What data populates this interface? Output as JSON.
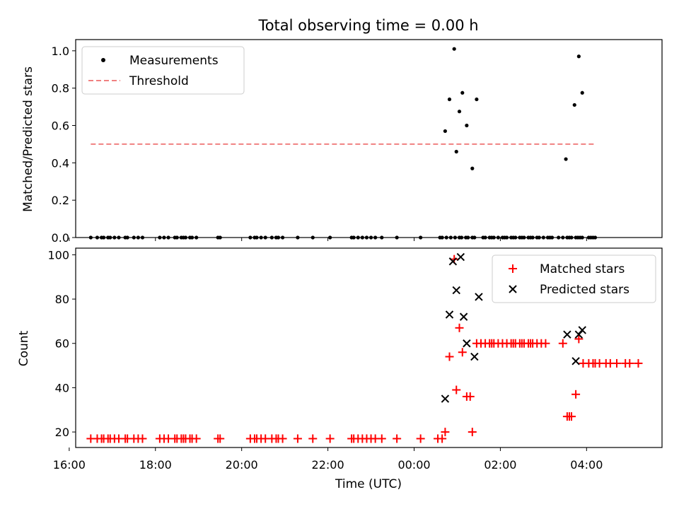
{
  "chart_data": [
    {
      "type": "scatter",
      "title": "Total observing time = 0.00 h",
      "ylabel": "Matched/Predicted stars",
      "xlabel": "",
      "xlim": [
        16.15,
        29.75
      ],
      "ylim": [
        0.0,
        1.06
      ],
      "yticks": [
        0.0,
        0.2,
        0.4,
        0.6,
        0.8,
        1.0
      ],
      "ytick_labels": [
        "0.0",
        "0.2",
        "0.4",
        "0.6",
        "0.8",
        "1.0"
      ],
      "xticks": [
        16,
        18,
        20,
        22,
        24,
        26,
        28
      ],
      "grid": false,
      "legend": {
        "placement": "top-left",
        "entries": [
          {
            "label": "Measurements",
            "marker": "dot",
            "color": "#000000"
          },
          {
            "label": "Threshold",
            "marker": "dashed-line",
            "color": "#f08080"
          }
        ]
      },
      "threshold": {
        "value": 0.5,
        "x_range": [
          16.5,
          28.2
        ]
      },
      "series": [
        {
          "name": "Measurements",
          "color": "#000000",
          "x": [
            16.5,
            16.65,
            16.75,
            16.8,
            16.9,
            16.95,
            17.05,
            17.15,
            17.3,
            17.35,
            17.5,
            17.6,
            17.7,
            18.1,
            18.2,
            18.3,
            18.45,
            18.5,
            18.6,
            18.65,
            18.7,
            18.8,
            18.85,
            18.95,
            19.45,
            19.5,
            20.2,
            20.3,
            20.35,
            20.45,
            20.55,
            20.7,
            20.8,
            20.85,
            20.95,
            21.3,
            21.65,
            22.05,
            22.55,
            22.6,
            22.7,
            22.8,
            22.9,
            23.0,
            23.1,
            23.25,
            23.6,
            24.15,
            24.6,
            24.65,
            24.75,
            24.85,
            24.95,
            25.05,
            25.1,
            25.2,
            25.25,
            25.35,
            25.4,
            25.6,
            25.65,
            25.75,
            25.8,
            25.85,
            25.95,
            26.05,
            26.1,
            26.15,
            26.25,
            26.3,
            26.35,
            26.45,
            26.5,
            26.55,
            26.65,
            26.7,
            26.75,
            26.85,
            26.9,
            27.0,
            27.1,
            27.15,
            27.2,
            27.35,
            27.45,
            27.55,
            27.6,
            27.65,
            27.75,
            27.8,
            27.85,
            27.9,
            28.05,
            28.1,
            28.15,
            28.2
          ],
          "y": [
            0,
            0,
            0,
            0,
            0,
            0,
            0,
            0,
            0,
            0,
            0,
            0,
            0,
            0,
            0,
            0,
            0,
            0,
            0,
            0,
            0,
            0,
            0,
            0,
            0,
            0,
            0,
            0,
            0,
            0,
            0,
            0,
            0,
            0,
            0,
            0,
            0,
            0,
            0,
            0,
            0,
            0,
            0,
            0,
            0,
            0,
            0,
            0,
            0,
            0,
            0,
            0,
            0,
            0,
            0,
            0,
            0,
            0,
            0,
            0,
            0,
            0,
            0,
            0,
            0,
            0,
            0,
            0,
            0,
            0,
            0,
            0,
            0,
            0,
            0,
            0,
            0,
            0,
            0,
            0,
            0,
            0,
            0,
            0,
            0,
            0,
            0,
            0,
            0,
            0,
            0,
            0,
            0,
            0,
            0,
            0
          ],
          "extra_points": {
            "x": [
              24.72,
              24.82,
              24.93,
              24.98,
              25.05,
              25.12,
              25.22,
              25.35,
              25.45,
              27.52,
              27.72,
              27.82,
              27.9
            ],
            "y": [
              0.57,
              0.74,
              1.01,
              0.46,
              0.675,
              0.775,
              0.6,
              0.37,
              0.74,
              0.42,
              0.71,
              0.97,
              0.775
            ]
          }
        }
      ]
    },
    {
      "type": "scatter",
      "title": "",
      "ylabel": "Count",
      "xlabel": "Time (UTC)",
      "xlim": [
        16.15,
        29.75
      ],
      "ylim": [
        13,
        103
      ],
      "yticks": [
        20,
        40,
        60,
        80,
        100
      ],
      "ytick_labels": [
        "20",
        "40",
        "60",
        "80",
        "100"
      ],
      "xticks": [
        16,
        18,
        20,
        22,
        24,
        26,
        28
      ],
      "xtick_labels": [
        "16:00",
        "18:00",
        "20:00",
        "22:00",
        "00:00",
        "02:00",
        "04:00"
      ],
      "grid": false,
      "legend": {
        "placement": "top-right",
        "entries": [
          {
            "label": "Matched stars",
            "marker": "plus",
            "color": "#ff0000"
          },
          {
            "label": "Predicted stars",
            "marker": "x",
            "color": "#000000"
          }
        ]
      },
      "series": [
        {
          "name": "Matched stars",
          "color": "#ff0000",
          "x": [
            16.5,
            16.65,
            16.75,
            16.8,
            16.9,
            16.95,
            17.05,
            17.15,
            17.3,
            17.35,
            17.5,
            17.6,
            17.7,
            18.1,
            18.2,
            18.3,
            18.45,
            18.5,
            18.6,
            18.65,
            18.7,
            18.8,
            18.85,
            18.95,
            19.45,
            19.5,
            20.2,
            20.3,
            20.35,
            20.45,
            20.55,
            20.7,
            20.8,
            20.85,
            20.95,
            21.3,
            21.65,
            22.05,
            22.55,
            22.6,
            22.7,
            22.8,
            22.9,
            23.0,
            23.1,
            23.25,
            23.6,
            24.15,
            24.55,
            24.65,
            24.72,
            24.82,
            24.93,
            24.98,
            25.05,
            25.12,
            25.22,
            25.3,
            25.35,
            25.45,
            25.55,
            25.65,
            25.75,
            25.8,
            25.85,
            25.95,
            26.05,
            26.15,
            26.25,
            26.3,
            26.35,
            26.45,
            26.5,
            26.55,
            26.65,
            26.7,
            26.75,
            26.85,
            26.95,
            27.05,
            27.45,
            27.55,
            27.6,
            27.65,
            27.75,
            27.82,
            27.92,
            28.05,
            28.15,
            28.2,
            28.3,
            28.45,
            28.55,
            28.7,
            28.9,
            29.0,
            29.2
          ],
          "y": [
            17,
            17,
            17,
            17,
            17,
            17,
            17,
            17,
            17,
            17,
            17,
            17,
            17,
            17,
            17,
            17,
            17,
            17,
            17,
            17,
            17,
            17,
            17,
            17,
            17,
            17,
            17,
            17,
            17,
            17,
            17,
            17,
            17,
            17,
            17,
            17,
            17,
            17,
            17,
            17,
            17,
            17,
            17,
            17,
            17,
            17,
            17,
            17,
            17,
            17,
            20,
            54,
            98,
            39,
            67,
            56,
            36,
            36,
            20,
            60,
            60,
            60,
            60,
            60,
            60,
            60,
            60,
            60,
            60,
            60,
            60,
            60,
            60,
            60,
            60,
            60,
            60,
            60,
            60,
            60,
            60,
            27,
            27,
            27,
            37,
            62,
            51,
            51,
            51,
            51,
            51,
            51,
            51,
            51,
            51,
            51,
            51
          ]
        },
        {
          "name": "Predicted stars",
          "color": "#000000",
          "x": [
            24.72,
            24.82,
            24.9,
            24.98,
            25.08,
            25.15,
            25.22,
            25.4,
            25.5,
            27.55,
            27.75,
            27.82,
            27.9
          ],
          "y": [
            35,
            73,
            97,
            84,
            99,
            72,
            60,
            54,
            81,
            64,
            52,
            64,
            66
          ]
        }
      ]
    }
  ]
}
